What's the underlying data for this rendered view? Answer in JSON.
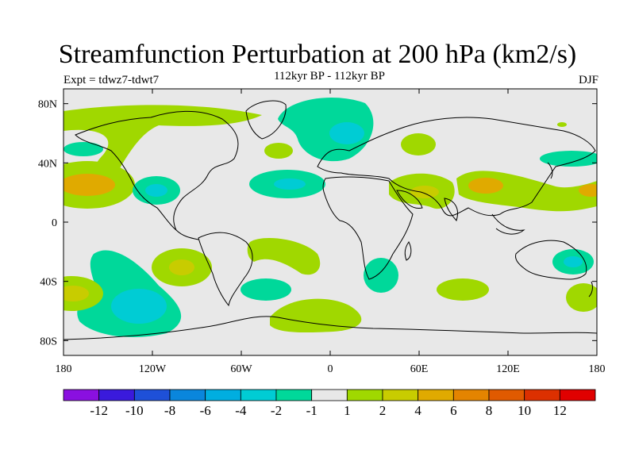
{
  "title": "Streamfunction Perturbation at 200 hPa (km2/s)",
  "subtitle": "112kyr BP - 112kyr BP",
  "experiment": "Expt = tdwz7-tdwt7",
  "season": "DJF",
  "map": {
    "lon_ticks": [
      "180",
      "120W",
      "60W",
      "0",
      "60E",
      "120E",
      "180"
    ],
    "lat_ticks": [
      "80N",
      "40N",
      "0",
      "40S",
      "80S"
    ],
    "lat_values": [
      80,
      40,
      0,
      -40,
      -80
    ]
  },
  "colorbar": {
    "colors": [
      "#8a10e0",
      "#3a1adc",
      "#1e50d8",
      "#0a86dc",
      "#00aee0",
      "#00ccd4",
      "#00d89a",
      "#e8e8e8",
      "#a0d800",
      "#c8cc00",
      "#e0aa00",
      "#e48400",
      "#e05a00",
      "#dc3000",
      "#e00000"
    ],
    "labels": [
      "-12",
      "-10",
      "-8",
      "-6",
      "-4",
      "-2",
      "-1",
      "1",
      "2",
      "4",
      "6",
      "8",
      "10",
      "12"
    ]
  }
}
